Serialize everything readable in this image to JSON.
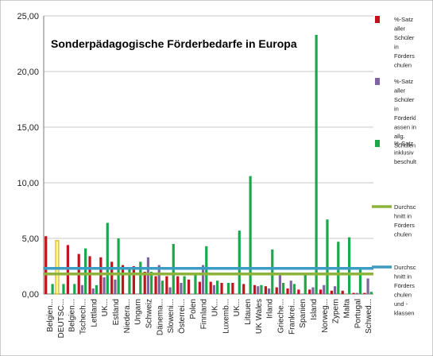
{
  "chart_data": {
    "type": "bar",
    "title": "Sonderpädagogische Förderbedarfe in Europa",
    "xlabel": "",
    "ylabel": "",
    "ylim": [
      0,
      25
    ],
    "y_ticks": [
      "0,00",
      "5,00",
      "10,00",
      "15,00",
      "20,00",
      "25,00"
    ],
    "grid": true,
    "legend_position": "right",
    "categories": [
      "Belgien...",
      "DEUTSC...",
      "Belgien...",
      "Tschech...",
      "Lettland",
      "UK...",
      "Estland",
      "Niedera...",
      "Ungarn",
      "Schweiz",
      "Dänema...",
      "Sloweni...",
      "Österrei...",
      "Polen",
      "Finnland",
      "UK...",
      "Luxemb...",
      "UK...",
      "Litauen",
      "UK Wales",
      "Irland",
      "Grieche...",
      "Frankrei...",
      "Spanien",
      "Island",
      "Norweg...",
      "Zypern",
      "Malta",
      "Portugal",
      "Schwed..."
    ],
    "series": [
      {
        "name": "%-Satz aller Schüler in Förderschulen",
        "color": "#c0141c",
        "type": "bar",
        "values": [
          5.2,
          4.8,
          4.4,
          3.6,
          3.4,
          3.3,
          2.9,
          2.6,
          2.5,
          2.0,
          1.6,
          1.6,
          1.6,
          1.3,
          1.1,
          1.1,
          1.0,
          1.0,
          0.9,
          0.8,
          0.7,
          0.6,
          0.5,
          0.4,
          0.4,
          0.4,
          0.3,
          0.3,
          0.1,
          0.1
        ]
      },
      {
        "name": "%-Satz aller Schüler in Förderklassen in allg. Schulen",
        "color": "#8064a2",
        "type": "bar",
        "values": [
          0.0,
          0.0,
          0.0,
          0.8,
          0.5,
          1.5,
          1.3,
          0.0,
          0.0,
          3.3,
          2.6,
          0.6,
          1.0,
          0.0,
          2.6,
          0.8,
          0.0,
          0.0,
          0.0,
          0.7,
          0.5,
          1.8,
          1.2,
          0.0,
          0.6,
          0.8,
          0.7,
          0.0,
          0.1,
          1.4
        ]
      },
      {
        "name": "%-Satz inklusiv beschult",
        "color": "#1aa84a",
        "type": "bar",
        "values": [
          0.9,
          0.9,
          0.9,
          4.1,
          0.8,
          6.4,
          5.0,
          2.4,
          2.9,
          2.0,
          1.2,
          4.5,
          1.6,
          1.8,
          4.3,
          1.2,
          1.0,
          5.7,
          10.6,
          0.8,
          4.0,
          1.0,
          0.9,
          1.9,
          23.3,
          6.7,
          4.7,
          5.1,
          2.4,
          0.2
        ]
      },
      {
        "name": "Durchschnitt in Förderschulen",
        "color": "#8db33a",
        "type": "line",
        "value": 1.8
      },
      {
        "name": "Durchschnitt in Förderschulen und -klassen",
        "color": "#3b9cc4",
        "type": "line",
        "value": 2.3
      }
    ],
    "legend_labels": [
      [
        "%-Satz",
        "aller",
        "Schüler",
        "in",
        "Förders",
        "chulen"
      ],
      [
        "%-Satz",
        "aller",
        "Schüler",
        "in",
        "Förderkl",
        "assen in",
        "allg.",
        "Schulen"
      ],
      [
        "%-Satz",
        "inklusiv",
        "beschult"
      ],
      [
        "Durchsc",
        "hnitt in",
        "Förders",
        "chulen"
      ],
      [
        "Durchsc",
        "hnitt in",
        "Förders",
        "chulen",
        "und -",
        "klassen"
      ]
    ]
  }
}
